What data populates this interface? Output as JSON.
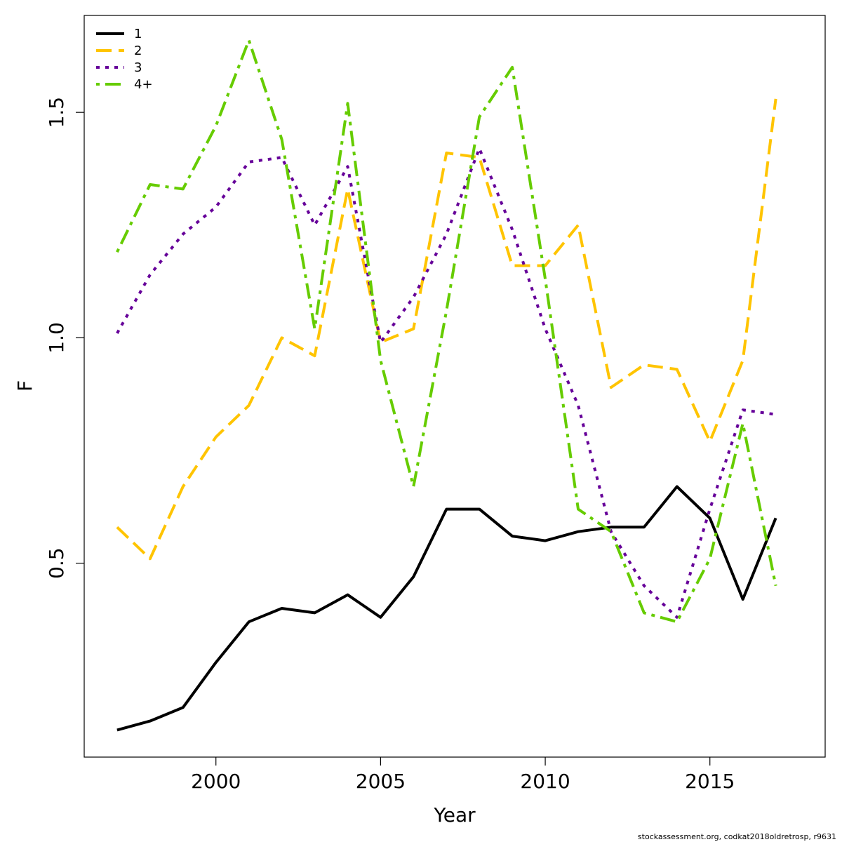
{
  "chart_data": {
    "type": "line",
    "xlabel": "Year",
    "ylabel": "F",
    "xlim": [
      1996,
      2018.5
    ],
    "ylim": [
      0.07,
      1.715
    ],
    "xticks": [
      2000,
      2005,
      2010,
      2015
    ],
    "yticks": [
      0.5,
      1.0,
      1.5
    ],
    "ytick_labels": [
      "0.5",
      "1.0",
      "1.5"
    ],
    "legend_position": "top-left",
    "x": [
      1997,
      1998,
      1999,
      2000,
      2001,
      2002,
      2003,
      2004,
      2005,
      2006,
      2007,
      2008,
      2009,
      2010,
      2011,
      2012,
      2013,
      2014,
      2015,
      2016,
      2017
    ],
    "series": [
      {
        "name": "1",
        "color": "#000000",
        "dash": "solid",
        "values": [
          0.13,
          0.15,
          0.18,
          0.28,
          0.37,
          0.4,
          0.39,
          0.43,
          0.38,
          0.47,
          0.62,
          0.62,
          0.56,
          0.55,
          0.57,
          0.58,
          0.58,
          0.67,
          0.6,
          0.42,
          0.6
        ]
      },
      {
        "name": "2",
        "color": "#FFC400",
        "dash": "dashed",
        "values": [
          0.58,
          0.51,
          0.67,
          0.78,
          0.85,
          1.0,
          0.96,
          1.33,
          0.99,
          1.02,
          1.41,
          1.4,
          1.16,
          1.16,
          1.25,
          0.89,
          0.94,
          0.93,
          0.77,
          0.95,
          1.53
        ]
      },
      {
        "name": "3",
        "color": "#660099",
        "dash": "dotted",
        "values": [
          1.01,
          1.14,
          1.23,
          1.29,
          1.39,
          1.4,
          1.25,
          1.38,
          0.99,
          1.09,
          1.23,
          1.42,
          1.24,
          1.02,
          0.85,
          0.57,
          0.45,
          0.38,
          0.62,
          0.84,
          0.83
        ]
      },
      {
        "name": "4+",
        "color": "#66CC00",
        "dash": "dashdot",
        "values": [
          1.19,
          1.34,
          1.33,
          1.47,
          1.66,
          1.44,
          1.02,
          1.52,
          0.95,
          0.67,
          1.06,
          1.49,
          1.6,
          1.13,
          0.62,
          0.57,
          0.39,
          0.37,
          0.51,
          0.81,
          0.45
        ]
      }
    ]
  },
  "footer_text": "stockassessment.org, codkat2018oldretrosp, r9631"
}
